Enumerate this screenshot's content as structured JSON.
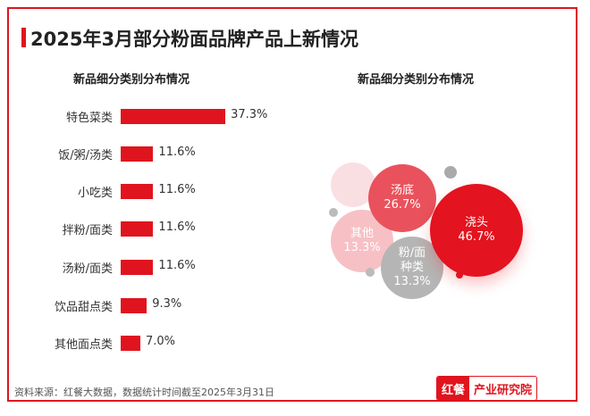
{
  "title": "2025年3月部分粉面品牌产品上新情况",
  "chart_data": [
    {
      "type": "bar",
      "title": "新品细分类别分布情况",
      "categories": [
        "特色菜类",
        "饭/粥/汤类",
        "小吃类",
        "拌粉/面类",
        "汤粉/面类",
        "饮品甜点类",
        "其他面点类"
      ],
      "values": [
        37.3,
        11.6,
        11.6,
        11.6,
        11.6,
        9.3,
        7.0
      ],
      "labels": [
        "37.3%",
        "11.6%",
        "11.6%",
        "11.6%",
        "11.6%",
        "9.3%",
        "7.0%"
      ],
      "color": "#e0141e"
    },
    {
      "type": "bubble",
      "title": "新品细分类别分布情况",
      "categories": [
        "浇头",
        "汤底",
        "其他",
        "粉/面种类"
      ],
      "values": [
        46.7,
        26.7,
        13.3,
        13.3
      ],
      "labels": [
        "46.7%",
        "26.7%",
        "13.3%",
        "13.3%"
      ]
    }
  ],
  "source": "资料来源：红餐大数据，数据统计时间截至2025年3月31日",
  "logo": {
    "left": "红餐",
    "right": "产业研究院"
  }
}
